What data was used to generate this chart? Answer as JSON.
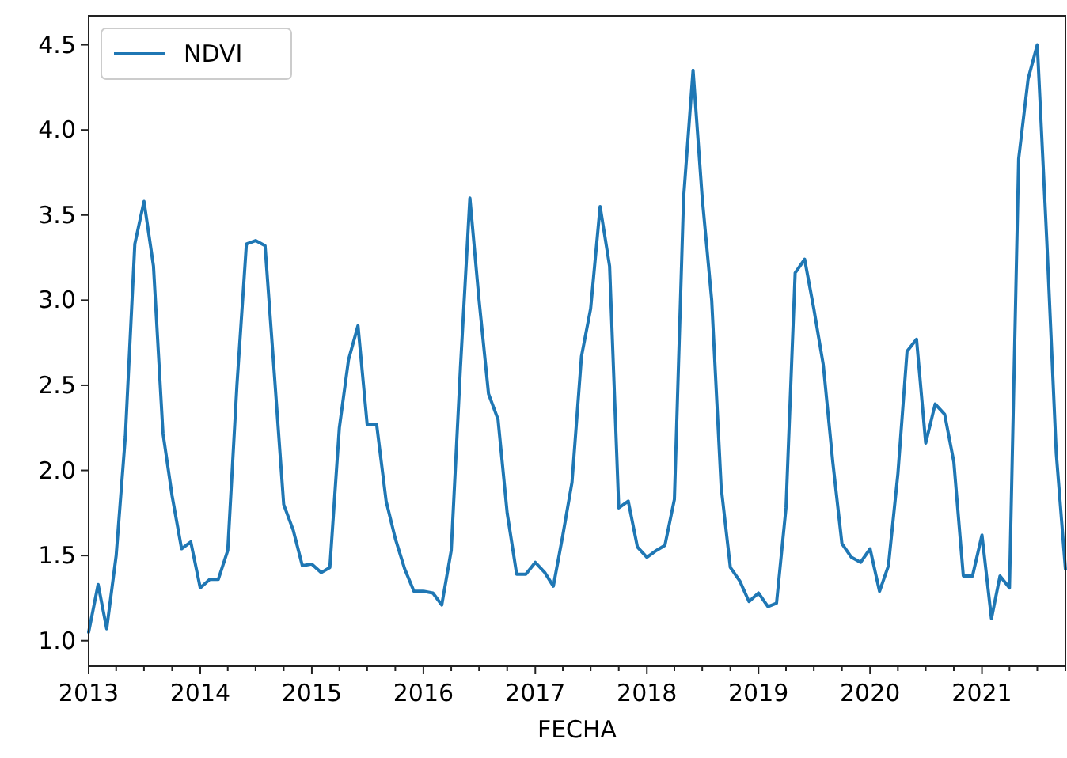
{
  "chart_data": {
    "type": "line",
    "xlabel": "FECHA",
    "x": [
      "2013-01",
      "2013-02",
      "2013-03",
      "2013-04",
      "2013-05",
      "2013-06",
      "2013-07",
      "2013-08",
      "2013-09",
      "2013-10",
      "2013-11",
      "2013-12",
      "2014-01",
      "2014-02",
      "2014-03",
      "2014-04",
      "2014-05",
      "2014-06",
      "2014-07",
      "2014-08",
      "2014-09",
      "2014-10",
      "2014-11",
      "2014-12",
      "2015-01",
      "2015-02",
      "2015-03",
      "2015-04",
      "2015-05",
      "2015-06",
      "2015-07",
      "2015-08",
      "2015-09",
      "2015-10",
      "2015-11",
      "2015-12",
      "2016-01",
      "2016-02",
      "2016-03",
      "2016-04",
      "2016-05",
      "2016-06",
      "2016-07",
      "2016-08",
      "2016-09",
      "2016-10",
      "2016-11",
      "2016-12",
      "2017-01",
      "2017-02",
      "2017-03",
      "2017-04",
      "2017-05",
      "2017-06",
      "2017-07",
      "2017-08",
      "2017-09",
      "2017-10",
      "2017-11",
      "2017-12",
      "2018-01",
      "2018-02",
      "2018-03",
      "2018-04",
      "2018-05",
      "2018-06",
      "2018-07",
      "2018-08",
      "2018-09",
      "2018-10",
      "2018-11",
      "2018-12",
      "2019-01",
      "2019-02",
      "2019-03",
      "2019-04",
      "2019-05",
      "2019-06",
      "2019-07",
      "2019-08",
      "2019-09",
      "2019-10",
      "2019-11",
      "2019-12",
      "2020-01",
      "2020-02",
      "2020-03",
      "2020-04",
      "2020-05",
      "2020-06",
      "2020-07",
      "2020-08",
      "2020-09",
      "2020-10",
      "2020-11",
      "2020-12",
      "2021-01",
      "2021-02",
      "2021-03",
      "2021-04",
      "2021-05",
      "2021-06",
      "2021-07",
      "2021-08",
      "2021-09",
      "2021-10"
    ],
    "series": [
      {
        "name": "NDVI",
        "color": "#1f77b4",
        "values": [
          1.05,
          1.33,
          1.07,
          1.5,
          2.2,
          3.33,
          3.58,
          3.2,
          2.22,
          1.85,
          1.54,
          1.58,
          1.31,
          1.36,
          1.36,
          1.53,
          2.5,
          3.33,
          3.35,
          3.32,
          2.55,
          1.8,
          1.65,
          1.44,
          1.45,
          1.4,
          1.43,
          2.25,
          2.65,
          2.85,
          2.27,
          2.27,
          1.82,
          1.6,
          1.42,
          1.29,
          1.29,
          1.28,
          1.21,
          1.53,
          2.6,
          3.6,
          3.0,
          2.45,
          2.3,
          1.75,
          1.39,
          1.39,
          1.46,
          1.4,
          1.32,
          1.62,
          1.93,
          2.67,
          2.95,
          3.55,
          3.2,
          1.78,
          1.82,
          1.55,
          1.49,
          1.53,
          1.56,
          1.83,
          3.6,
          4.35,
          3.6,
          3.0,
          1.9,
          1.43,
          1.35,
          1.23,
          1.28,
          1.2,
          1.22,
          1.78,
          3.16,
          3.24,
          2.95,
          2.62,
          2.05,
          1.57,
          1.49,
          1.46,
          1.54,
          1.29,
          1.44,
          1.98,
          2.7,
          2.77,
          2.16,
          2.39,
          2.33,
          2.05,
          1.38,
          1.38,
          1.62,
          1.13,
          1.38,
          1.31,
          3.83,
          4.3,
          4.5,
          3.35,
          2.1,
          1.42
        ]
      }
    ],
    "xlim": [
      "2013-01",
      "2021-10"
    ],
    "xticks": [
      {
        "value": "2013-01",
        "label": "2013"
      },
      {
        "value": "2013-04",
        "label": null
      },
      {
        "value": "2013-07",
        "label": null
      },
      {
        "value": "2013-10",
        "label": null
      },
      {
        "value": "2014-01",
        "label": "2014"
      },
      {
        "value": "2014-04",
        "label": null
      },
      {
        "value": "2014-07",
        "label": null
      },
      {
        "value": "2014-10",
        "label": null
      },
      {
        "value": "2015-01",
        "label": "2015"
      },
      {
        "value": "2015-04",
        "label": null
      },
      {
        "value": "2015-07",
        "label": null
      },
      {
        "value": "2015-10",
        "label": null
      },
      {
        "value": "2016-01",
        "label": "2016"
      },
      {
        "value": "2016-04",
        "label": null
      },
      {
        "value": "2016-07",
        "label": null
      },
      {
        "value": "2016-10",
        "label": null
      },
      {
        "value": "2017-01",
        "label": "2017"
      },
      {
        "value": "2017-04",
        "label": null
      },
      {
        "value": "2017-07",
        "label": null
      },
      {
        "value": "2017-10",
        "label": null
      },
      {
        "value": "2018-01",
        "label": "2018"
      },
      {
        "value": "2018-04",
        "label": null
      },
      {
        "value": "2018-07",
        "label": null
      },
      {
        "value": "2018-10",
        "label": null
      },
      {
        "value": "2019-01",
        "label": "2019"
      },
      {
        "value": "2019-04",
        "label": null
      },
      {
        "value": "2019-07",
        "label": null
      },
      {
        "value": "2019-10",
        "label": null
      },
      {
        "value": "2020-01",
        "label": "2020"
      },
      {
        "value": "2020-04",
        "label": null
      },
      {
        "value": "2020-07",
        "label": null
      },
      {
        "value": "2020-10",
        "label": null
      },
      {
        "value": "2021-01",
        "label": "2021"
      },
      {
        "value": "2021-04",
        "label": null
      },
      {
        "value": "2021-07",
        "label": null
      },
      {
        "value": "2021-10",
        "label": null
      }
    ],
    "ylim": [
      0.85,
      4.67
    ],
    "yticks": [
      {
        "value": 1,
        "label": "1.0"
      },
      {
        "value": 1.5,
        "label": "1.5"
      },
      {
        "value": 2,
        "label": "2.0"
      },
      {
        "value": 2.5,
        "label": "2.5"
      },
      {
        "value": 3,
        "label": "3.0"
      },
      {
        "value": 3.5,
        "label": "3.5"
      },
      {
        "value": 4,
        "label": "4.0"
      },
      {
        "value": 4.5,
        "label": "4.5"
      }
    ],
    "grid": false,
    "legend": "top left",
    "line_style": "solid"
  }
}
